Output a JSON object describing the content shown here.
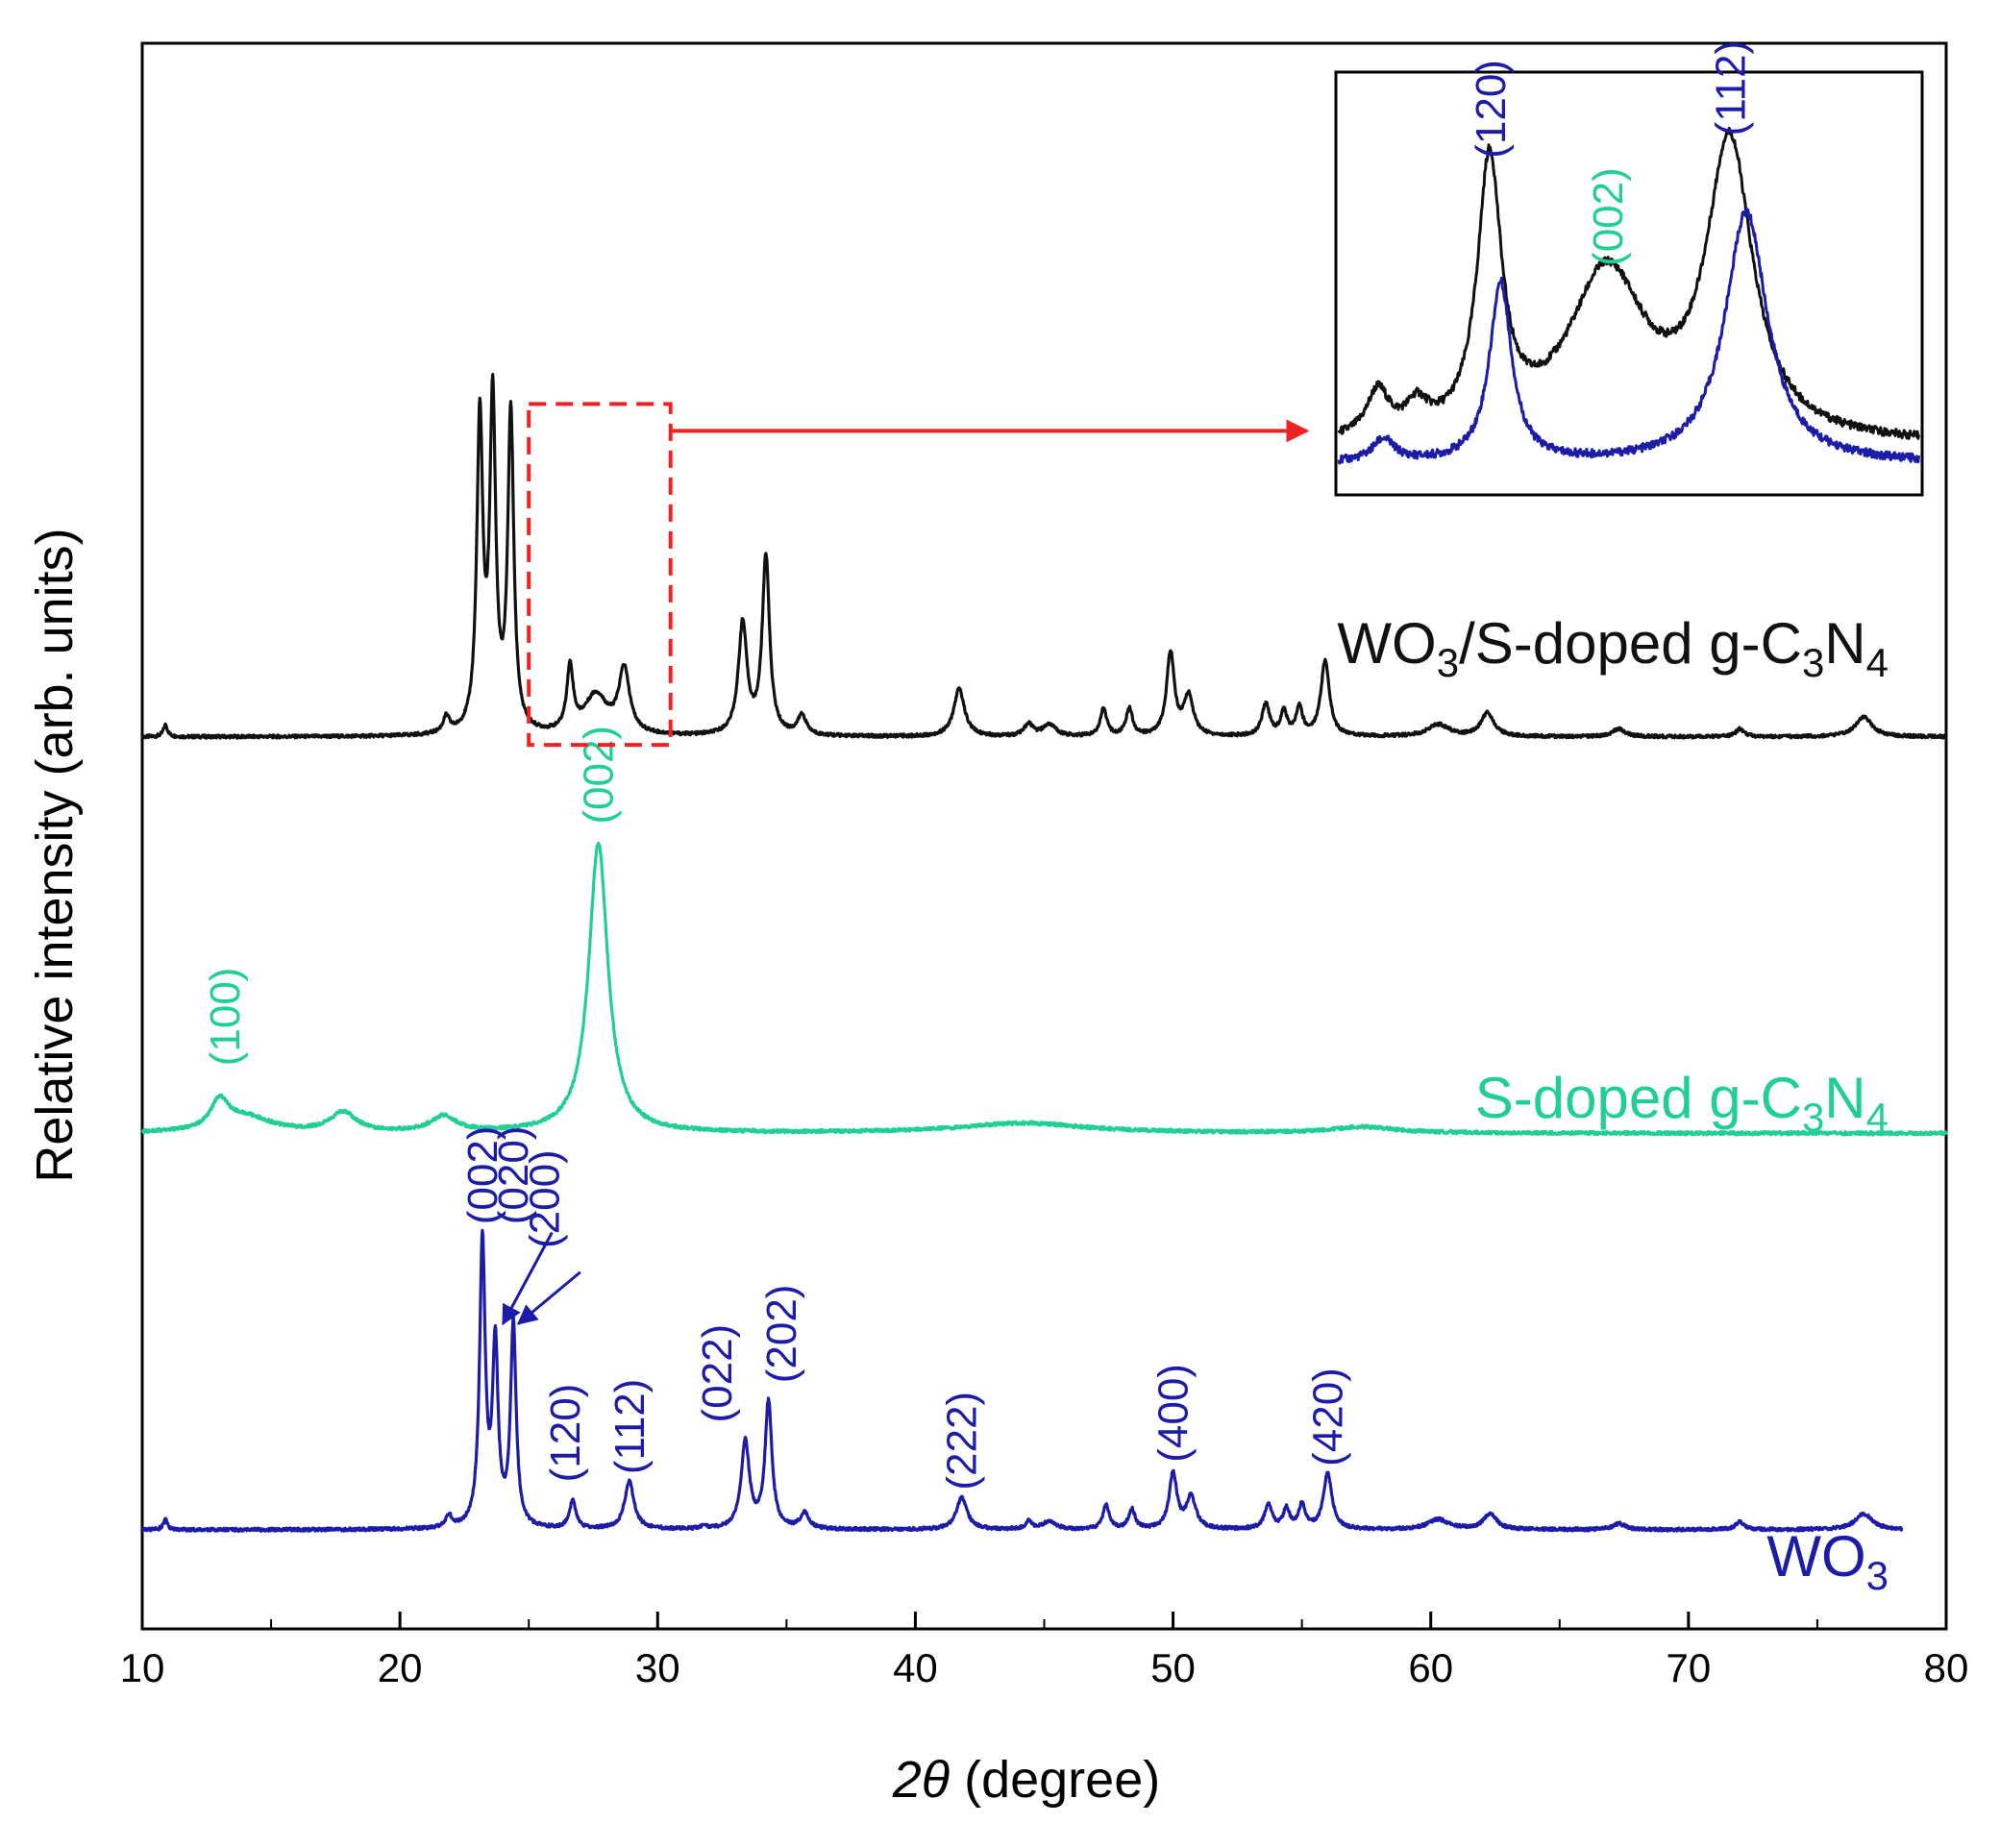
{
  "chart_data": {
    "type": "line",
    "title": "",
    "xlabel": {
      "symbol": "2θ",
      "unit": " (degree)"
    },
    "ylabel": "Relative intensity (arb. units)",
    "xlim": [
      10,
      80
    ],
    "ylim": [
      0,
      4
    ],
    "xticks": [
      10,
      20,
      30,
      40,
      50,
      60,
      70,
      80
    ],
    "y_tick_labels": "none",
    "grid": false,
    "colors": {
      "black": "#111111",
      "green": "#1fcf95",
      "blue": "#1c1ca8",
      "red": "#ee2222"
    },
    "series": [
      {
        "name": "WO3/S-doped g-C3N4",
        "legend_label": {
          "parts": [
            "WO",
            "3",
            "/S-doped g-C",
            "3",
            "N",
            "4"
          ]
        },
        "color": "black",
        "baseline": 2.25,
        "x_range": [
          10,
          80
        ],
        "peaks": [
          {
            "x": 10.9,
            "h": 0.03,
            "w": 0.1
          },
          {
            "x": 21.8,
            "h": 0.04,
            "w": 0.15
          },
          {
            "x": 23.1,
            "h": 0.78,
            "w": 0.14
          },
          {
            "x": 23.6,
            "h": 0.82,
            "w": 0.14
          },
          {
            "x": 24.3,
            "h": 0.8,
            "w": 0.14
          },
          {
            "x": 26.6,
            "h": 0.16,
            "w": 0.15
          },
          {
            "x": 27.6,
            "h": 0.1,
            "w": 0.55
          },
          {
            "x": 28.7,
            "h": 0.16,
            "w": 0.25
          },
          {
            "x": 33.3,
            "h": 0.28,
            "w": 0.2
          },
          {
            "x": 34.2,
            "h": 0.45,
            "w": 0.17
          },
          {
            "x": 35.6,
            "h": 0.05,
            "w": 0.2
          },
          {
            "x": 41.7,
            "h": 0.12,
            "w": 0.25
          },
          {
            "x": 44.4,
            "h": 0.03,
            "w": 0.2
          },
          {
            "x": 45.2,
            "h": 0.03,
            "w": 0.3
          },
          {
            "x": 47.3,
            "h": 0.07,
            "w": 0.15
          },
          {
            "x": 48.3,
            "h": 0.07,
            "w": 0.15
          },
          {
            "x": 49.9,
            "h": 0.21,
            "w": 0.18
          },
          {
            "x": 50.6,
            "h": 0.1,
            "w": 0.22
          },
          {
            "x": 53.6,
            "h": 0.08,
            "w": 0.18
          },
          {
            "x": 54.3,
            "h": 0.06,
            "w": 0.15
          },
          {
            "x": 54.9,
            "h": 0.07,
            "w": 0.15
          },
          {
            "x": 55.9,
            "h": 0.19,
            "w": 0.2
          },
          {
            "x": 60.3,
            "h": 0.03,
            "w": 0.5
          },
          {
            "x": 62.2,
            "h": 0.06,
            "w": 0.3
          },
          {
            "x": 67.3,
            "h": 0.02,
            "w": 0.3
          },
          {
            "x": 72.0,
            "h": 0.02,
            "w": 0.2
          },
          {
            "x": 76.8,
            "h": 0.05,
            "w": 0.4
          }
        ]
      },
      {
        "name": "S-doped g-C3N4",
        "legend_label": {
          "parts": [
            "S-doped g-C",
            "3",
            "N",
            "4"
          ]
        },
        "color": "green",
        "baseline": 1.25,
        "x_range": [
          10,
          80
        ],
        "peaks": [
          {
            "x": 13.0,
            "h": 0.07,
            "w": 0.4
          },
          {
            "x": 14.0,
            "h": 0.04,
            "w": 1.2
          },
          {
            "x": 17.8,
            "h": 0.05,
            "w": 0.6
          },
          {
            "x": 21.7,
            "h": 0.04,
            "w": 0.6
          },
          {
            "x": 27.7,
            "h": 0.73,
            "w": 0.45
          },
          {
            "x": 44.2,
            "h": 0.025,
            "w": 3.0
          },
          {
            "x": 57.4,
            "h": 0.015,
            "w": 1.5
          }
        ]
      },
      {
        "name": "WO3",
        "legend_label": {
          "parts": [
            "WO",
            "3"
          ]
        },
        "color": "blue",
        "baseline": 0.25,
        "x_range": [
          10,
          78.3
        ],
        "peaks": [
          {
            "x": 10.9,
            "h": 0.025,
            "w": 0.1
          },
          {
            "x": 21.9,
            "h": 0.03,
            "w": 0.15
          },
          {
            "x": 23.2,
            "h": 0.72,
            "w": 0.13
          },
          {
            "x": 23.7,
            "h": 0.45,
            "w": 0.13
          },
          {
            "x": 24.4,
            "h": 0.51,
            "w": 0.13
          },
          {
            "x": 26.7,
            "h": 0.07,
            "w": 0.15
          },
          {
            "x": 28.9,
            "h": 0.12,
            "w": 0.22
          },
          {
            "x": 31.8,
            "h": 0.01,
            "w": 0.1
          },
          {
            "x": 33.4,
            "h": 0.22,
            "w": 0.19
          },
          {
            "x": 34.3,
            "h": 0.32,
            "w": 0.16
          },
          {
            "x": 35.7,
            "h": 0.04,
            "w": 0.2
          },
          {
            "x": 41.8,
            "h": 0.08,
            "w": 0.25
          },
          {
            "x": 44.4,
            "h": 0.02,
            "w": 0.15
          },
          {
            "x": 45.2,
            "h": 0.02,
            "w": 0.3
          },
          {
            "x": 47.4,
            "h": 0.06,
            "w": 0.15
          },
          {
            "x": 48.4,
            "h": 0.05,
            "w": 0.15
          },
          {
            "x": 50.0,
            "h": 0.14,
            "w": 0.18
          },
          {
            "x": 50.7,
            "h": 0.08,
            "w": 0.22
          },
          {
            "x": 53.7,
            "h": 0.06,
            "w": 0.18
          },
          {
            "x": 54.4,
            "h": 0.05,
            "w": 0.15
          },
          {
            "x": 55.0,
            "h": 0.06,
            "w": 0.15
          },
          {
            "x": 56.0,
            "h": 0.14,
            "w": 0.2
          },
          {
            "x": 60.3,
            "h": 0.025,
            "w": 0.5
          },
          {
            "x": 62.3,
            "h": 0.04,
            "w": 0.3
          },
          {
            "x": 67.3,
            "h": 0.015,
            "w": 0.3
          },
          {
            "x": 72.0,
            "h": 0.02,
            "w": 0.2
          },
          {
            "x": 76.8,
            "h": 0.04,
            "w": 0.4
          }
        ]
      }
    ],
    "annotations": [
      {
        "text": "(100)",
        "color": "green",
        "x": 13.2,
        "y": 1.42
      },
      {
        "text": "(002)",
        "color": "green",
        "x": 27.7,
        "y": 2.03
      },
      {
        "text": "(002)",
        "color": "blue",
        "x": 23.2,
        "y": 1.02
      },
      {
        "text": "(020)",
        "color": "blue",
        "x": 24.4,
        "y": 1.02
      },
      {
        "text": "(200)",
        "color": "blue",
        "x": 25.6,
        "y": 0.96
      },
      {
        "text": "(120)",
        "color": "blue",
        "x": 26.4,
        "y": 0.37
      },
      {
        "text": "(112)",
        "color": "blue",
        "x": 28.9,
        "y": 0.39
      },
      {
        "text": "(022)",
        "color": "blue",
        "x": 32.3,
        "y": 0.52
      },
      {
        "text": "(202)",
        "color": "blue",
        "x": 34.8,
        "y": 0.62
      },
      {
        "text": "(222)",
        "color": "blue",
        "x": 41.8,
        "y": 0.35
      },
      {
        "text": "(400)",
        "color": "blue",
        "x": 50.0,
        "y": 0.42
      },
      {
        "text": "(420)",
        "color": "blue",
        "x": 56.0,
        "y": 0.41
      }
    ],
    "arrows": [
      {
        "for": "(020)",
        "color": "blue",
        "from": [
          25.9,
          1.0
        ],
        "to": [
          24.0,
          0.77
        ]
      },
      {
        "for": "(200)",
        "color": "blue",
        "from": [
          27.0,
          0.9
        ],
        "to": [
          24.6,
          0.77
        ]
      }
    ],
    "zoom_box": {
      "color": "red",
      "x": [
        25.0,
        30.5
      ],
      "y": [
        2.23,
        3.09
      ],
      "arrow_target": "inset"
    },
    "inset": {
      "x_range": [
        25.2,
        30.4
      ],
      "series": [
        {
          "color": "black",
          "baseline": 0.06,
          "peaks": [
            {
              "x": 25.55,
              "h": 0.1,
              "w": 0.12
            },
            {
              "x": 25.9,
              "h": 0.06,
              "w": 0.12
            },
            {
              "x": 26.55,
              "h": 0.6,
              "w": 0.13
            },
            {
              "x": 27.6,
              "h": 0.37,
              "w": 0.42
            },
            {
              "x": 28.7,
              "h": 0.65,
              "w": 0.25
            }
          ]
        },
        {
          "color": "blue",
          "baseline": 0.02,
          "peaks": [
            {
              "x": 25.6,
              "h": 0.05,
              "w": 0.12
            },
            {
              "x": 26.65,
              "h": 0.4,
              "w": 0.12
            },
            {
              "x": 28.85,
              "h": 0.56,
              "w": 0.23
            }
          ]
        }
      ],
      "annotations": [
        {
          "text": "(120)",
          "color": "blue",
          "x": 26.55,
          "y": 0.7
        },
        {
          "text": "(002)",
          "color": "green",
          "x": 27.6,
          "y": 0.46
        },
        {
          "text": "(112)",
          "color": "blue",
          "x": 28.7,
          "y": 0.75
        }
      ]
    }
  }
}
